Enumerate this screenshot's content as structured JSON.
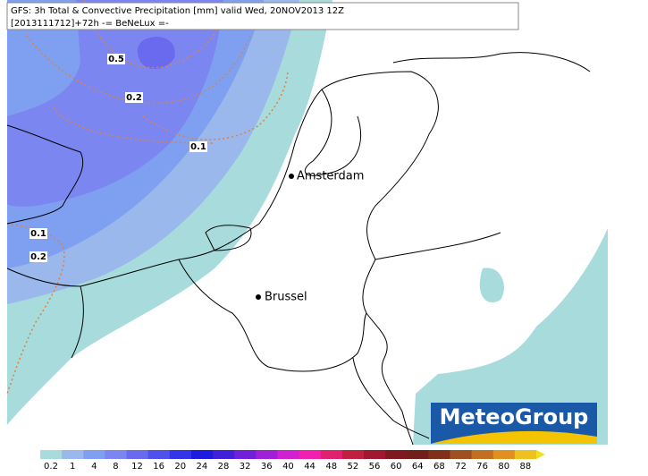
{
  "header": {
    "line1": "GFS: 3h Total & Convective Precipitation [mm] valid Wed, 20NOV2013 12Z",
    "line2": "[2013111712]+72h  -= BeNeLux =-"
  },
  "cities": [
    {
      "name": "Amsterdam"
    },
    {
      "name": "Brussel"
    }
  ],
  "contour_labels": [
    "0.5",
    "0.2",
    "0.1",
    "0.1",
    "0.2"
  ],
  "logo": "MeteoGroup",
  "legend": {
    "labels": [
      0.2,
      1,
      4,
      8,
      12,
      16,
      20,
      24,
      28,
      32,
      36,
      40,
      44,
      48,
      52,
      56,
      60,
      64,
      68,
      72,
      76,
      80,
      88
    ],
    "colors": [
      "#a8dcdc",
      "#9ab8ec",
      "#7fa0f0",
      "#7c86f0",
      "#6a6aee",
      "#5050ec",
      "#3434e8",
      "#1c1ce0",
      "#4020d8",
      "#7020d8",
      "#a020d8",
      "#d020d0",
      "#f020b0",
      "#e02070",
      "#c02040",
      "#a01830",
      "#801820",
      "#702018",
      "#803018",
      "#a05020",
      "#c07020",
      "#e09020",
      "#f0c020"
    ]
  }
}
